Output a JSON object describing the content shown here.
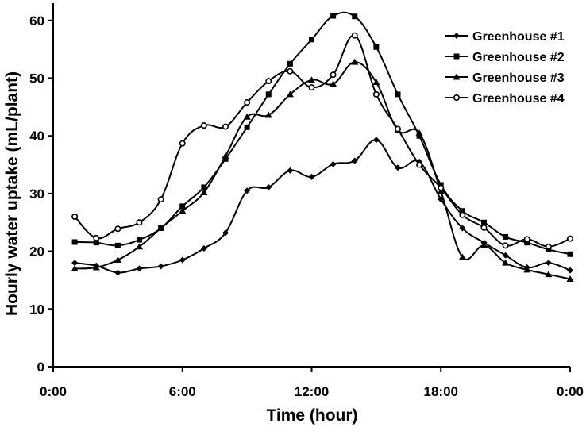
{
  "chart_data": {
    "type": "line",
    "title": "",
    "xlabel": "Time (hour)",
    "ylabel": "Hourly water uptake (mL/plant)",
    "xlim": [
      0,
      24
    ],
    "ylim": [
      0,
      63
    ],
    "xticks": [
      0,
      6,
      12,
      18,
      24
    ],
    "xtick_labels": [
      "0:00",
      "6:00",
      "12:00",
      "18:00",
      "0:00"
    ],
    "yticks": [
      0,
      10,
      20,
      30,
      40,
      50,
      60
    ],
    "ytick_labels": [
      "0",
      "10",
      "20",
      "30",
      "40",
      "50",
      "60"
    ],
    "grid": false,
    "legend_position": "top-right",
    "x": [
      1,
      2,
      3,
      4,
      5,
      6,
      7,
      8,
      9,
      10,
      11,
      12,
      13,
      14,
      15,
      16,
      17,
      18,
      19,
      20,
      21,
      22,
      23,
      24
    ],
    "series": [
      {
        "name": "Greenhouse #1",
        "marker": "diamond",
        "values": [
          18,
          17.5,
          16.3,
          17,
          17.4,
          18.5,
          20.5,
          23.2,
          30.5,
          31.1,
          34,
          32.9,
          35.1,
          35.7,
          39.3,
          34.5,
          35.5,
          29,
          24,
          21.5,
          19.3,
          17.2,
          18,
          16.7
        ]
      },
      {
        "name": "Greenhouse #2",
        "marker": "square",
        "values": [
          21.6,
          21.5,
          21,
          22,
          24,
          27.8,
          31.1,
          36,
          41.5,
          47.2,
          52.5,
          56.7,
          60.8,
          60.7,
          55.4,
          47.2,
          40,
          31.5,
          27,
          25,
          22.5,
          21.5,
          20.3,
          19.5
        ]
      },
      {
        "name": "Greenhouse #3",
        "marker": "triangle",
        "values": [
          17,
          17.2,
          18.5,
          20.8,
          24,
          27,
          30.2,
          36.5,
          43.3,
          43.6,
          47.2,
          49.7,
          49,
          52.8,
          49.3,
          41,
          40.5,
          30.4,
          19,
          21,
          18,
          16.8,
          16,
          15.2
        ]
      },
      {
        "name": "Greenhouse #4",
        "marker": "circle",
        "values": [
          26,
          22.3,
          23.9,
          25,
          29,
          38.7,
          41.8,
          41.6,
          45.8,
          49.5,
          51.2,
          48.4,
          50.6,
          57.4,
          47.2,
          41.2,
          35,
          31,
          26.3,
          24.1,
          21,
          22.1,
          20.8,
          22.2
        ]
      }
    ]
  }
}
